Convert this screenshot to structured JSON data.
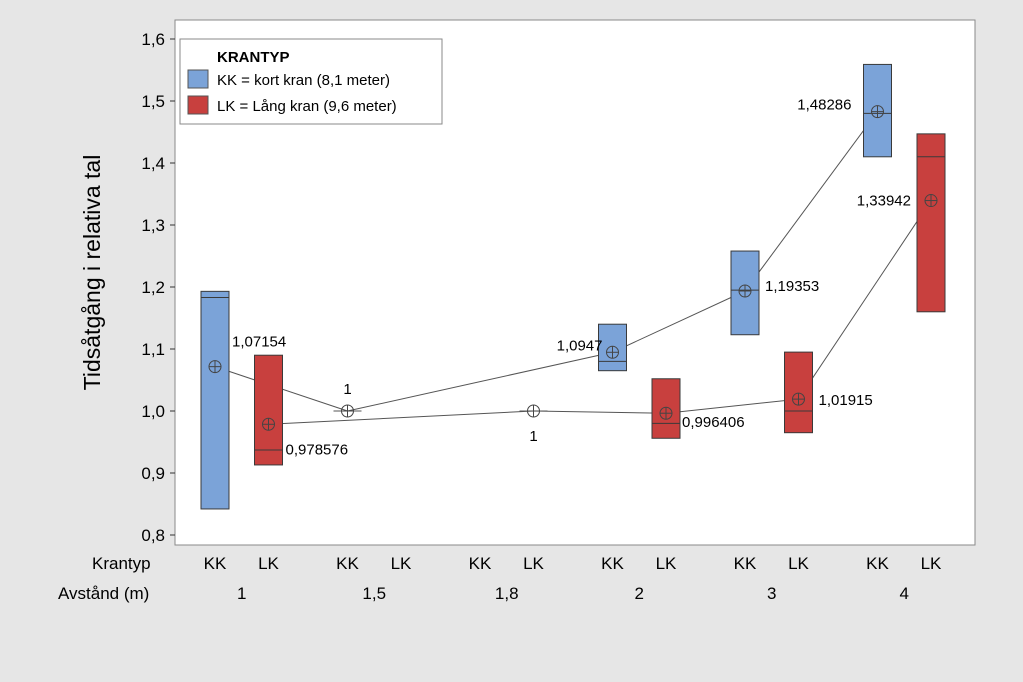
{
  "chart_data": {
    "type": "boxplot",
    "ylabel": "Tidsåtgång i relativa tal",
    "ylim": [
      0.8,
      1.6
    ],
    "yticks": [
      "0,8",
      "0,9",
      "1,0",
      "1,1",
      "1,2",
      "1,3",
      "1,4",
      "1,5",
      "1,6"
    ],
    "ytick_values": [
      0.8,
      0.9,
      1.0,
      1.1,
      1.2,
      1.3,
      1.4,
      1.5,
      1.6
    ],
    "x_row_labels": [
      "Krantyp",
      "Avstånd (m)"
    ],
    "krantyp_labels": [
      "KK",
      "LK",
      "KK",
      "LK",
      "KK",
      "LK",
      "KK",
      "LK",
      "KK",
      "LK",
      "KK",
      "LK"
    ],
    "avstand_labels": [
      "1",
      "1,5",
      "1,8",
      "2",
      "3",
      "4"
    ],
    "legend": {
      "title": "KRANTYP",
      "items": [
        {
          "label": "KK = kort kran (8,1 meter)",
          "color": "#7ba3d8"
        },
        {
          "label": "LK = Lång kran (9,6 meter)",
          "color": "#c8403e"
        }
      ],
      "placement": "top-left"
    },
    "series": [
      {
        "key": "KK",
        "color": "#7ba3d8",
        "boxes": [
          {
            "avstand": "1",
            "q1": 0.842,
            "median": 1.183,
            "q3": 1.193,
            "mean": 1.07154,
            "mean_label": "1,07154"
          },
          {
            "avstand": "1,5",
            "q1": 1.0,
            "median": 1.0,
            "q3": 1.0,
            "mean": 1.0,
            "mean_label": "1"
          },
          {
            "avstand": "1,8",
            "q1": null,
            "median": null,
            "q3": null,
            "mean": null,
            "mean_label": ""
          },
          {
            "avstand": "2",
            "q1": 1.065,
            "median": 1.08,
            "q3": 1.14,
            "mean": 1.0947,
            "mean_label": "1,0947"
          },
          {
            "avstand": "3",
            "q1": 1.123,
            "median": 1.195,
            "q3": 1.258,
            "mean": 1.19353,
            "mean_label": "1,19353"
          },
          {
            "avstand": "4",
            "q1": 1.41,
            "median": 1.48,
            "q3": 1.559,
            "mean": 1.48286,
            "mean_label": "1,48286"
          }
        ]
      },
      {
        "key": "LK",
        "color": "#c8403e",
        "boxes": [
          {
            "avstand": "1",
            "q1": 0.913,
            "median": 0.937,
            "q3": 1.09,
            "mean": 0.978576,
            "mean_label": "0,978576"
          },
          {
            "avstand": "1,5",
            "q1": null,
            "median": null,
            "q3": null,
            "mean": null,
            "mean_label": ""
          },
          {
            "avstand": "1,8",
            "q1": 1.0,
            "median": 1.0,
            "q3": 1.0,
            "mean": 1.0,
            "mean_label": "1"
          },
          {
            "avstand": "2",
            "q1": 0.956,
            "median": 0.98,
            "q3": 1.052,
            "mean": 0.996406,
            "mean_label": "0,996406"
          },
          {
            "avstand": "3",
            "q1": 0.965,
            "median": 1.0,
            "q3": 1.095,
            "mean": 1.01915,
            "mean_label": "1,01915"
          },
          {
            "avstand": "4",
            "q1": 1.16,
            "median": 1.41,
            "q3": 1.447,
            "mean": 1.33942,
            "mean_label": "1,33942"
          }
        ]
      }
    ],
    "grid": false
  }
}
